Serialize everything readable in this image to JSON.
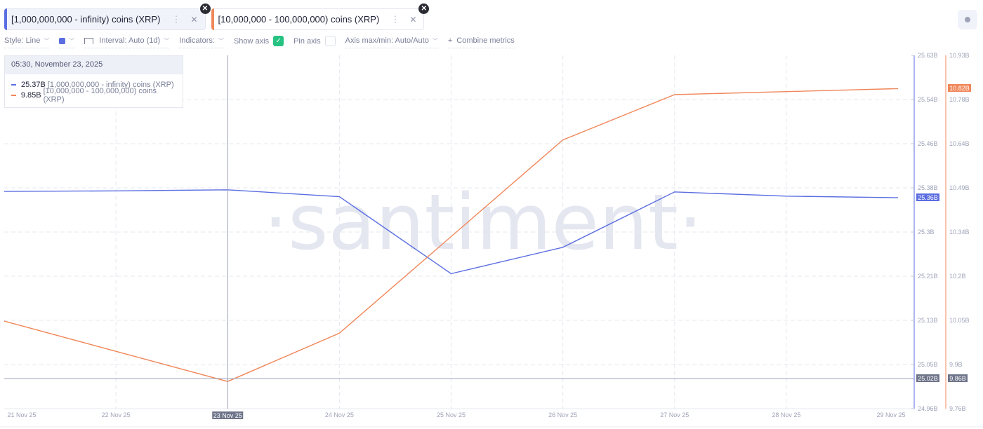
{
  "tabs": [
    {
      "label": "[1,000,000,000 - infinity) coins (XRP)",
      "color": "#5b6ee1",
      "active": true,
      "menu_icon": "kebab-icon",
      "close_icon": "close-icon"
    },
    {
      "label": "[10,000,000 - 100,000,000) coins (XRP)",
      "color": "#f0875a",
      "active": false,
      "menu_icon": "kebab-icon",
      "close_icon": "close-icon"
    }
  ],
  "toolbar": {
    "style_label": "Style: Line",
    "color_swatch": "#5b6ee1",
    "interval_label": "Interval: Auto (1d)",
    "indicators_label": "Indicators:",
    "show_axis_label": "Show axis",
    "show_axis_checked": true,
    "pin_axis_label": "Pin axis",
    "pin_axis_checked": false,
    "axis_minmax_label": "Axis max/min: Auto/Auto",
    "combine_label": "Combine metrics",
    "combine_icon": "+"
  },
  "tooltip": {
    "date": "05:30, November 23, 2025",
    "rows": [
      {
        "value": "25.37B",
        "label": "[1,000,000,000 - infinity) coins (XRP)",
        "color": "#5b6ee1"
      },
      {
        "value": "9.85B",
        "label": "[10,000,000 - 100,000,000) coins (XRP)",
        "color": "#f0875a"
      }
    ]
  },
  "watermark": "·santiment·",
  "axis_badges": {
    "blue_last": "25.36B",
    "orange_last": "10.82B",
    "cursor_blue": "25.02B",
    "cursor_orange": "9.86B",
    "cursor_date": "23 Nov 25"
  },
  "chart_data": {
    "type": "line",
    "title": "",
    "xlabel": "",
    "ylabel": "",
    "categories": [
      "21 Nov 25",
      "22 Nov 25",
      "23 Nov 25",
      "24 Nov 25",
      "25 Nov 25",
      "26 Nov 25",
      "27 Nov 25",
      "28 Nov 25",
      "29 Nov 25"
    ],
    "series": [
      {
        "name": "[1,000,000,000 - infinity) coins (XRP)",
        "color": "#5b6ee1",
        "axis": "left",
        "values": [
          25.372,
          25.373,
          25.375,
          25.362,
          25.216,
          25.266,
          25.371,
          25.363,
          25.36
        ]
      },
      {
        "name": "[10,000,000 - 100,000,000) coins (XRP)",
        "color": "#f0875a",
        "axis": "right",
        "values": [
          10.05,
          9.95,
          9.85,
          10.01,
          10.33,
          10.65,
          10.8,
          10.81,
          10.82
        ]
      }
    ],
    "axes": {
      "left": {
        "ticks": [
          "25.63B",
          "25.54B",
          "25.46B",
          "25.38B",
          "25.3B",
          "25.21B",
          "25.13B",
          "25.05B",
          "24.96B"
        ],
        "ylim": [
          24.96,
          25.63
        ]
      },
      "right": {
        "ticks": [
          "10.93B",
          "10.78B",
          "10.64B",
          "10.49B",
          "10.34B",
          "10.2B",
          "10.05B",
          "9.9B",
          "9.76B"
        ],
        "ylim": [
          9.76,
          10.93
        ]
      }
    },
    "grid": true,
    "legend_position": "tabs-top"
  }
}
